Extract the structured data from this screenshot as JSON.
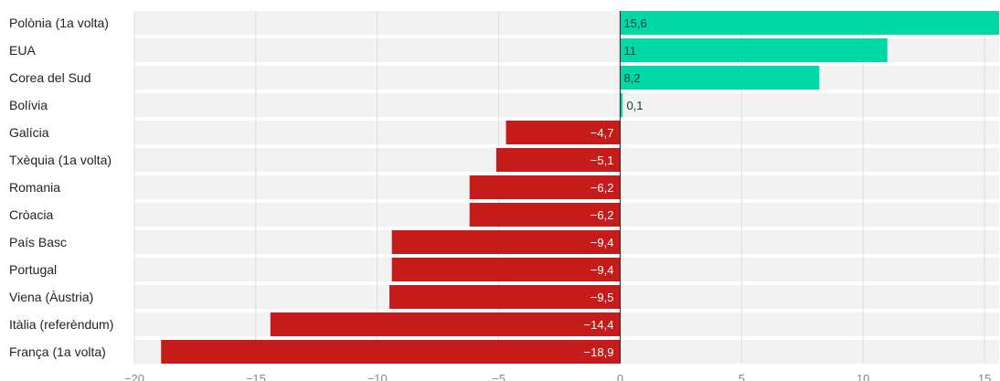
{
  "chart_data": {
    "type": "bar",
    "orientation": "horizontal",
    "categories": [
      "Polònia (1a volta)",
      "EUA",
      "Corea del Sud",
      "Bolívia",
      "Galícia",
      "Txèquia (1a volta)",
      "Romania",
      "Cròacia",
      "País Basc",
      "Portugal",
      "Viena (Àustria)",
      "Itàlia (referèndum)",
      "França (1a volta)"
    ],
    "values": [
      15.6,
      11,
      8.2,
      0.1,
      -4.7,
      -5.1,
      -6.2,
      -6.2,
      -9.4,
      -9.4,
      -9.5,
      -14.4,
      -18.9
    ],
    "value_labels": [
      "15,6",
      "11",
      "8,2",
      "0,1",
      "−4,7",
      "−5,1",
      "−6,2",
      "−6,2",
      "−9,4",
      "−9,4",
      "−9,5",
      "−14,4",
      "−18,9"
    ],
    "xlim": [
      -20,
      15.6
    ],
    "xticks": [
      -20,
      -15,
      -10,
      -5,
      0,
      5,
      10,
      15
    ],
    "xtick_labels": [
      "−20",
      "−15",
      "−10",
      "−5",
      "0",
      "5",
      "10",
      "15"
    ],
    "grid": true,
    "colors": {
      "positive": "#00d9a6",
      "negative": "#c61b1b",
      "row_background": "#f2f2f2",
      "grid": "#dddddd",
      "zero_line": "#333333",
      "label_on_negative": "#ffffff",
      "label_on_positive": "#1a3a33"
    }
  }
}
